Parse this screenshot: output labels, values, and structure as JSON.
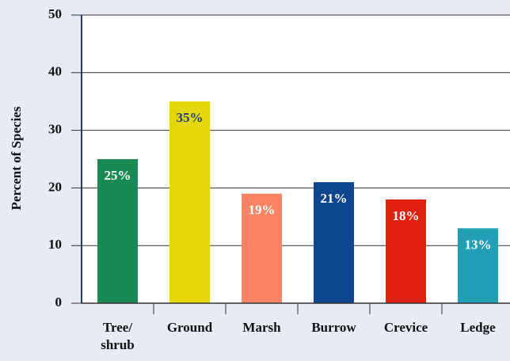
{
  "chart_data": {
    "type": "bar",
    "ylabel": "Percent of Species",
    "categories": [
      "Tree/\nshrub",
      "Ground",
      "Marsh",
      "Burrow",
      "Crevice",
      "Ledge"
    ],
    "values": [
      25,
      35,
      19,
      21,
      18,
      13
    ],
    "value_labels": [
      "25%",
      "35%",
      "19%",
      "21%",
      "18%",
      "13%"
    ],
    "colors": [
      "#1a8a55",
      "#e5d70a",
      "#fa8363",
      "#0e458f",
      "#e02010",
      "#229fb5"
    ],
    "label_colors": [
      "#ffffff",
      "#1f3f73",
      "#ffffff",
      "#ffffff",
      "#ffffff",
      "#ffffff"
    ],
    "ylim": [
      0,
      50
    ],
    "yticks": [
      0,
      10,
      20,
      30,
      40,
      50
    ],
    "grid": true
  }
}
